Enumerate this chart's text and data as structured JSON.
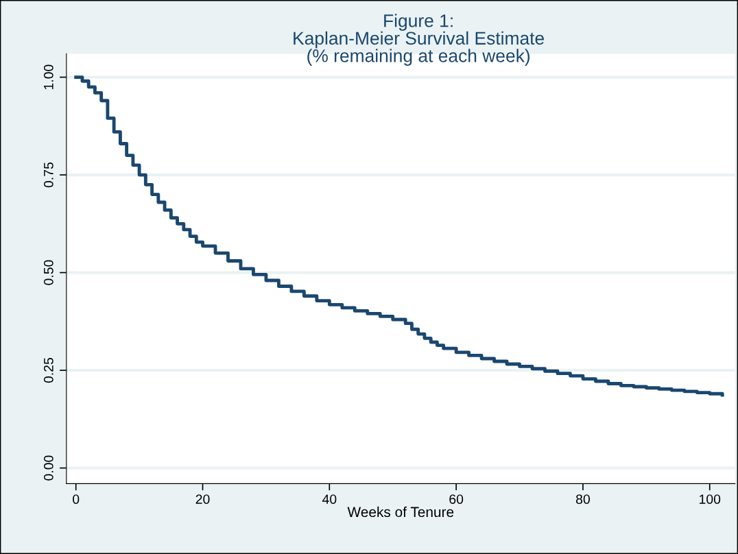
{
  "chart_data": {
    "type": "step",
    "title": "Figure 1:\nKaplan-Meier Survival Estimate\n(% remaining at each week)",
    "xlabel": "Weeks of Tenure",
    "x": [
      0,
      1,
      2,
      3,
      4,
      5,
      6,
      7,
      8,
      9,
      10,
      11,
      12,
      13,
      14,
      15,
      16,
      17,
      18,
      19,
      20,
      22,
      24,
      26,
      28,
      30,
      32,
      34,
      36,
      38,
      40,
      42,
      44,
      46,
      48,
      50,
      52,
      53,
      54,
      55,
      56,
      57,
      58,
      60,
      62,
      64,
      66,
      68,
      70,
      72,
      74,
      76,
      78,
      80,
      82,
      84,
      86,
      88,
      90,
      92,
      94,
      96,
      98,
      100,
      102
    ],
    "series": [
      {
        "color": "#1a476f",
        "values": [
          1.0,
          0.99,
          0.975,
          0.96,
          0.94,
          0.895,
          0.86,
          0.83,
          0.8,
          0.775,
          0.75,
          0.725,
          0.7,
          0.68,
          0.66,
          0.64,
          0.625,
          0.61,
          0.593,
          0.578,
          0.568,
          0.55,
          0.53,
          0.51,
          0.495,
          0.48,
          0.465,
          0.452,
          0.44,
          0.428,
          0.418,
          0.41,
          0.402,
          0.395,
          0.388,
          0.38,
          0.37,
          0.355,
          0.343,
          0.332,
          0.322,
          0.314,
          0.306,
          0.296,
          0.288,
          0.28,
          0.273,
          0.266,
          0.26,
          0.254,
          0.248,
          0.242,
          0.236,
          0.228,
          0.222,
          0.216,
          0.211,
          0.208,
          0.205,
          0.202,
          0.199,
          0.196,
          0.193,
          0.19,
          0.187
        ]
      }
    ],
    "xlim": [
      -1.5,
      104
    ],
    "ylim": [
      -0.04,
      1.06
    ],
    "xticks": [
      0,
      20,
      40,
      60,
      80,
      100
    ],
    "yticks": [
      {
        "value": 0,
        "label": "0.00"
      },
      {
        "value": 0.25,
        "label": "0.25"
      },
      {
        "value": 0.5,
        "label": "0.50"
      },
      {
        "value": 0.75,
        "label": "0.75"
      },
      {
        "value": 1,
        "label": "1.00"
      }
    ],
    "grid": "y",
    "legend": false
  }
}
